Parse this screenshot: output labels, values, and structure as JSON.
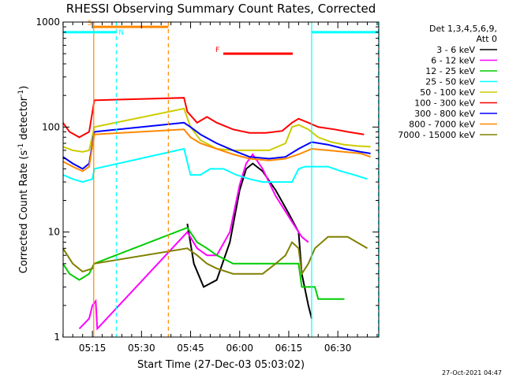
{
  "chart_data": {
    "type": "line",
    "title": "RHESSI Observing Summary Count Rates, Corrected",
    "ylabel": "Corrected Count Rate (s",
    "ylabel_sup1": "-1",
    "ylabel_mid": " detector",
    "ylabel_sup2": "-1",
    "ylabel_end": ")",
    "xlabel": "Start Time (27-Dec-03 05:03:02)",
    "yscale": "log",
    "ylim": [
      1,
      1000
    ],
    "xlim_min": [
      5.0,
      9.0
    ],
    "xlim": [
      3.05,
      99.5
    ],
    "x_ticks": [
      {
        "min": 12,
        "label": "05:15"
      },
      {
        "min": 27,
        "label": "05:30"
      },
      {
        "min": 42,
        "label": "05:45"
      },
      {
        "min": 57,
        "label": "06:00"
      },
      {
        "min": 72,
        "label": "06:15"
      },
      {
        "min": 87,
        "label": "06:30"
      }
    ],
    "y_ticks": [
      {
        "v": 1,
        "label": "1"
      },
      {
        "v": 10,
        "label": "10"
      },
      {
        "v": 100,
        "label": "100"
      },
      {
        "v": 1000,
        "label": "1000"
      }
    ],
    "legend_header": [
      "Det 1,3,4,5,6,9,",
      "Att 0"
    ],
    "series": [
      {
        "name": "3 - 6 keV",
        "color": "#000000",
        "points": [
          [
            41,
            12
          ],
          [
            43,
            5
          ],
          [
            46,
            3
          ],
          [
            50,
            3.5
          ],
          [
            54,
            8
          ],
          [
            57,
            25
          ],
          [
            59,
            40
          ],
          [
            61,
            45
          ],
          [
            64,
            38
          ],
          [
            68,
            25
          ],
          [
            72,
            15
          ],
          [
            75,
            10
          ],
          [
            76,
            4
          ],
          [
            78,
            2
          ],
          [
            79,
            1.5
          ]
        ]
      },
      {
        "name": "6 - 12 keV",
        "color": "#ff00ff",
        "points": [
          [
            8,
            1.2
          ],
          [
            11,
            1.5
          ],
          [
            12,
            2
          ],
          [
            13,
            2.2
          ],
          [
            13.5,
            1.2
          ],
          [
            41,
            10
          ],
          [
            44,
            7
          ],
          [
            47,
            6
          ],
          [
            50,
            6
          ],
          [
            54,
            10
          ],
          [
            57,
            28
          ],
          [
            59,
            45
          ],
          [
            61,
            55
          ],
          [
            64,
            40
          ],
          [
            68,
            22
          ],
          [
            72,
            14
          ],
          [
            75,
            10
          ],
          [
            76,
            9
          ],
          [
            78,
            8
          ]
        ]
      },
      {
        "name": "12 - 25 keV",
        "color": "#00cc00",
        "points": [
          [
            3,
            5
          ],
          [
            5,
            4
          ],
          [
            8,
            3.5
          ],
          [
            11,
            4
          ],
          [
            12.5,
            5
          ],
          [
            41,
            11
          ],
          [
            44,
            8
          ],
          [
            47,
            7
          ],
          [
            50,
            6
          ],
          [
            55,
            5
          ],
          [
            60,
            5
          ],
          [
            65,
            5
          ],
          [
            70,
            5
          ],
          [
            75,
            5
          ],
          [
            76,
            3
          ],
          [
            78,
            3
          ],
          [
            80,
            3
          ],
          [
            81,
            2.3
          ],
          [
            89,
            2.3
          ]
        ]
      },
      {
        "name": "25 - 50 keV",
        "color": "#00ffff",
        "points": [
          [
            3,
            35
          ],
          [
            6,
            32
          ],
          [
            9,
            30
          ],
          [
            12,
            32
          ],
          [
            12.6,
            40
          ],
          [
            40,
            62
          ],
          [
            42,
            35
          ],
          [
            45,
            35
          ],
          [
            48,
            40
          ],
          [
            52,
            40
          ],
          [
            56,
            35
          ],
          [
            60,
            32
          ],
          [
            64,
            30
          ],
          [
            68,
            30
          ],
          [
            71,
            30
          ],
          [
            73,
            30
          ],
          [
            75,
            40
          ],
          [
            77,
            42
          ],
          [
            80,
            42
          ],
          [
            84,
            42
          ],
          [
            88,
            38
          ],
          [
            92,
            35
          ],
          [
            96,
            32
          ]
        ]
      },
      {
        "name": "50 - 100 keV",
        "color": "#cccc00",
        "points": [
          [
            3,
            65
          ],
          [
            6,
            60
          ],
          [
            9,
            58
          ],
          [
            11,
            60
          ],
          [
            12.6,
            100
          ],
          [
            40,
            150
          ],
          [
            42,
            100
          ],
          [
            45,
            75
          ],
          [
            50,
            62
          ],
          [
            55,
            60
          ],
          [
            60,
            60
          ],
          [
            66,
            60
          ],
          [
            71,
            70
          ],
          [
            73,
            100
          ],
          [
            75,
            105
          ],
          [
            78,
            95
          ],
          [
            81,
            80
          ],
          [
            85,
            72
          ],
          [
            89,
            68
          ],
          [
            93,
            66
          ],
          [
            97,
            65
          ]
        ]
      },
      {
        "name": "100 - 300 keV",
        "color": "#ff0000",
        "points": [
          [
            3,
            110
          ],
          [
            5,
            90
          ],
          [
            8,
            80
          ],
          [
            11,
            90
          ],
          [
            12.6,
            180
          ],
          [
            40,
            190
          ],
          [
            41,
            140
          ],
          [
            44,
            110
          ],
          [
            47,
            125
          ],
          [
            50,
            110
          ],
          [
            55,
            95
          ],
          [
            60,
            88
          ],
          [
            65,
            88
          ],
          [
            70,
            92
          ],
          [
            73,
            110
          ],
          [
            75,
            120
          ],
          [
            78,
            110
          ],
          [
            81,
            100
          ],
          [
            86,
            95
          ],
          [
            90,
            90
          ],
          [
            95,
            85
          ]
        ]
      },
      {
        "name": "300 - 800 keV",
        "color": "#0000ff",
        "points": [
          [
            3,
            52
          ],
          [
            6,
            45
          ],
          [
            9,
            40
          ],
          [
            11,
            45
          ],
          [
            12.6,
            90
          ],
          [
            40,
            110
          ],
          [
            42,
            100
          ],
          [
            45,
            85
          ],
          [
            50,
            70
          ],
          [
            55,
            60
          ],
          [
            60,
            52
          ],
          [
            66,
            50
          ],
          [
            71,
            52
          ],
          [
            75,
            62
          ],
          [
            79,
            72
          ],
          [
            84,
            68
          ],
          [
            89,
            62
          ],
          [
            94,
            58
          ],
          [
            97,
            56
          ]
        ]
      },
      {
        "name": "800 - 7000 keV",
        "color": "#ff8800",
        "points": [
          [
            3,
            47
          ],
          [
            6,
            42
          ],
          [
            9,
            38
          ],
          [
            11,
            42
          ],
          [
            12.6,
            85
          ],
          [
            40,
            95
          ],
          [
            42,
            80
          ],
          [
            45,
            70
          ],
          [
            50,
            62
          ],
          [
            55,
            55
          ],
          [
            60,
            50
          ],
          [
            66,
            48
          ],
          [
            71,
            50
          ],
          [
            75,
            55
          ],
          [
            79,
            62
          ],
          [
            84,
            60
          ],
          [
            89,
            58
          ],
          [
            94,
            56
          ],
          [
            97,
            52
          ]
        ]
      },
      {
        "name": "7000 - 15000 keV",
        "color": "#808000",
        "points": [
          [
            3,
            7
          ],
          [
            6,
            5
          ],
          [
            9,
            4.2
          ],
          [
            12,
            4.5
          ],
          [
            12.5,
            5
          ],
          [
            41,
            7
          ],
          [
            44,
            6
          ],
          [
            47,
            5
          ],
          [
            50,
            4.5
          ],
          [
            55,
            4
          ],
          [
            60,
            4
          ],
          [
            64,
            4
          ],
          [
            68,
            5
          ],
          [
            71,
            6
          ],
          [
            73,
            8
          ],
          [
            75,
            7
          ],
          [
            76,
            4
          ],
          [
            78,
            5
          ],
          [
            80,
            7
          ],
          [
            84,
            9
          ],
          [
            90,
            9
          ],
          [
            96,
            7
          ]
        ]
      }
    ],
    "bands": [
      {
        "id": "S",
        "label": "S",
        "color": "#ff8800",
        "start": 12.4,
        "end": 35.2,
        "y": 900
      },
      {
        "id": "N1",
        "label": "N",
        "color": "#00ffff",
        "start": 3.05,
        "end": 19.3,
        "y": 800
      },
      {
        "id": "N2",
        "label": "",
        "color": "#00ffff",
        "start": 79.0,
        "end": 99.4,
        "y": 800
      },
      {
        "id": "F",
        "label": "F",
        "color": "#ff0000",
        "start": 52.0,
        "end": 73.2,
        "y": 500
      }
    ],
    "vlines": [
      {
        "x": 12.4,
        "color": "#ff8800",
        "style": "solid"
      },
      {
        "x": 19.3,
        "color": "#00ffff",
        "style": "dashed"
      },
      {
        "x": 35.2,
        "color": "#ff8800",
        "style": "dashed"
      },
      {
        "x": 79.0,
        "color": "#00ffff",
        "style": "solid"
      },
      {
        "x": 99.4,
        "color": "#00ffff",
        "style": "dashed"
      }
    ],
    "timestamp": "27-Oct-2021 04:47"
  }
}
